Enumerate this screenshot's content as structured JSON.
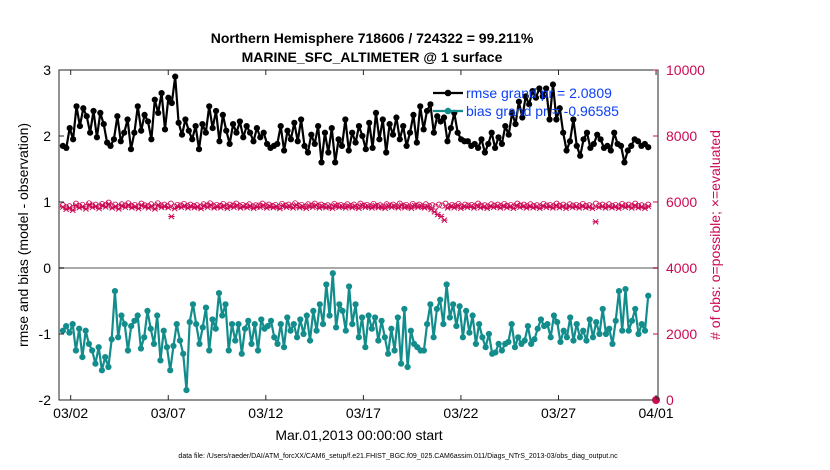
{
  "chart_data": {
    "type": "line",
    "title": "Northern Hemisphere 718606 / 724322 = 99.211%",
    "subtitle": "MARINE_SFC_ALTIMETER @ 1 surface",
    "xlabel": "Mar.01,2013 00:00:00 start",
    "ylabel_left": "rmse and bias (model - observation)",
    "ylabel_right": "# of obs: o=possible; ×=evaluated",
    "x_ticks": [
      "03/02",
      "03/07",
      "03/12",
      "03/17",
      "03/22",
      "03/27",
      "04/01"
    ],
    "x_tick_values": [
      1,
      6,
      11,
      16,
      21,
      26,
      31
    ],
    "xlim": [
      0.4,
      31.1
    ],
    "ylim_left": [
      -2,
      3
    ],
    "y_ticks_left": [
      "-2",
      "-1",
      "0",
      "1",
      "2",
      "3"
    ],
    "ylim_right": [
      0,
      10000
    ],
    "y_ticks_right": [
      "0",
      "2000",
      "4000",
      "6000",
      "8000",
      "10000"
    ],
    "footer": "data file: /Users/raeder/DAI/ATM_forcXX/CAM6_setup/f.e21.FHIST_BGC.f09_025.CAM6assim.011/Diags_NTrS_2013-03/obs_diag_output.nc",
    "series": [
      {
        "name": "rmse grand pr = 2.0809",
        "color": "#000000",
        "marker": "filled-circle",
        "axis": "left",
        "values": [
          1.85,
          1.82,
          2.12,
          1.95,
          2.45,
          2.15,
          2.42,
          2.3,
          2.05,
          2.38,
          1.98,
          2.35,
          2.18,
          1.9,
          1.85,
          1.95,
          2.3,
          1.92,
          2.05,
          2.25,
          1.8,
          2.05,
          2.45,
          2.08,
          2.32,
          2.22,
          1.95,
          2.55,
          2.35,
          2.65,
          2.1,
          2.58,
          2.5,
          2.9,
          2.2,
          2.02,
          2.25,
          2.08,
          1.95,
          2.15,
          1.8,
          2.18,
          2.05,
          2.45,
          2.12,
          2.38,
          1.92,
          2.32,
          2.08,
          1.88,
          2.18,
          2.05,
          2.22,
          1.98,
          2.15,
          2.05,
          1.92,
          2.12,
          1.98,
          2.05,
          1.88,
          1.82,
          1.85,
          1.88,
          2.15,
          1.78,
          2.08,
          1.95,
          2.2,
          1.92,
          2.25,
          1.85,
          1.75,
          2.02,
          1.88,
          2.15,
          1.6,
          2.05,
          1.75,
          2.12,
          1.6,
          1.95,
          1.85,
          2.25,
          1.78,
          2.05,
          1.9,
          2.15,
          2.0,
          1.8,
          2.2,
          1.82,
          2.35,
          1.95,
          2.25,
          1.75,
          2.18,
          2.02,
          2.28,
          1.95,
          2.15,
          1.85,
          2.05,
          2.32,
          1.9,
          2.45,
          2.1,
          2.38,
          2.48,
          2.05,
          2.3,
          2.22,
          2.28,
          1.92,
          2.12,
          2.35,
          2.05,
          1.95,
          1.92,
          1.92,
          1.85,
          1.88,
          1.82,
          1.95,
          1.75,
          1.88,
          2.05,
          1.82,
          1.98,
          1.88,
          2.15,
          2.02,
          2.35,
          2.18,
          2.52,
          2.28,
          2.6,
          2.48,
          2.68,
          2.58,
          2.72,
          2.6,
          2.72,
          2.25,
          2.78,
          2.25,
          2.42,
          2.05,
          1.78,
          1.92,
          2.25,
          1.85,
          1.7,
          1.95,
          2.05,
          1.82,
          1.88,
          2.02,
          1.95,
          1.82,
          1.85,
          1.78,
          2.05,
          1.88,
          1.85,
          1.6,
          1.78,
          1.85,
          1.95,
          1.92,
          1.85,
          1.88,
          1.83
        ]
      },
      {
        "name": "bias grand pr = -0.96585",
        "color": "#138c8c",
        "marker": "filled-circle",
        "axis": "left",
        "values": [
          -0.95,
          -0.88,
          -0.98,
          -0.85,
          -1.25,
          -0.92,
          -1.35,
          -0.95,
          -1.15,
          -1.25,
          -1.45,
          -1.2,
          -1.55,
          -1.35,
          -1.5,
          -1.08,
          -0.35,
          -1.05,
          -0.72,
          -0.85,
          -1.25,
          -0.88,
          -0.8,
          -0.72,
          -1.22,
          -1.05,
          -0.65,
          -0.92,
          -1.15,
          -0.72,
          -1.4,
          -0.95,
          -1.2,
          -1.55,
          -1.18,
          -0.85,
          -1.1,
          -1.3,
          -1.85,
          -0.82,
          -0.55,
          -0.85,
          -1.15,
          -0.9,
          -0.6,
          -1.25,
          -0.78,
          -0.92,
          -0.38,
          -0.72,
          -0.55,
          -1.25,
          -0.85,
          -1.1,
          -0.85,
          -1.3,
          -0.92,
          -0.8,
          -1.15,
          -0.85,
          -1.25,
          -0.78,
          -0.92,
          -0.88,
          -0.8,
          -1.05,
          -1.15,
          -0.85,
          -1.2,
          -0.75,
          -0.95,
          -0.85,
          -1.05,
          -0.78,
          -1.0,
          -0.72,
          -1.1,
          -0.65,
          -0.95,
          -0.55,
          -0.85,
          -0.25,
          -0.72,
          -0.08,
          -0.9,
          -0.55,
          -0.65,
          -0.95,
          -0.28,
          -0.85,
          -0.55,
          -1.05,
          -0.75,
          -1.2,
          -0.72,
          -0.92,
          -0.75,
          -1.1,
          -0.8,
          -1.05,
          -1.3,
          -0.92,
          -1.25,
          -0.75,
          -1.45,
          -0.62,
          -1.5,
          -0.95,
          -1.15,
          -1.2,
          -1.25,
          -1.25,
          -0.85,
          -0.55,
          -1.05,
          -0.62,
          -0.48,
          -0.85,
          -0.25,
          -0.75,
          -0.55,
          -0.88,
          -0.58,
          -1.05,
          -0.65,
          -0.98,
          -0.72,
          -1.15,
          -0.85,
          -1.05,
          -1.2,
          -1.0,
          -1.3,
          -1.28,
          -1.15,
          -1.25,
          -1.15,
          -1.12,
          -0.85,
          -1.2,
          -1.05,
          -1.15,
          -1.1,
          -0.88,
          -1.15,
          -1.08,
          -0.92,
          -0.78,
          -0.88,
          -0.85,
          -1.05,
          -0.72,
          -0.82,
          -1.12,
          -0.95,
          -1.05,
          -0.75,
          -1.1,
          -0.85,
          -1.05,
          -0.95,
          -1.1,
          -0.78,
          -1.05,
          -0.82,
          -1.0,
          -0.62,
          -1.0,
          -0.92,
          -1.15,
          -0.8,
          -0.35,
          -0.95,
          -0.32,
          -0.95,
          -0.8,
          -0.62,
          -1.0,
          -0.85,
          -0.95,
          -0.42
        ]
      },
      {
        "name": "possible",
        "color": "#cc0a55",
        "marker": "open-circle",
        "axis": "right",
        "values": [
          5900,
          5840,
          5870,
          5810,
          5950,
          5880,
          5910,
          5850,
          5960,
          5890,
          5920,
          5860,
          5940,
          5900,
          5980,
          5870,
          5920,
          5850,
          5930,
          5890,
          5960,
          5880,
          5910,
          5860,
          5950,
          5900,
          5870,
          5930,
          5840,
          5960,
          5890,
          5920,
          5880,
          5950,
          5860,
          5910,
          5890,
          5940,
          5870,
          5920,
          5880,
          5900,
          5850,
          5930,
          5890,
          5960,
          5870,
          5910,
          5880,
          5940,
          5860,
          5920,
          5890,
          5950,
          5870,
          5910,
          5880,
          5930,
          5860,
          5900,
          5890,
          5950,
          5870,
          5920,
          5880,
          5910,
          5850,
          5940,
          5890,
          5920,
          5870,
          5960,
          5880,
          5910,
          5860,
          5930,
          5890,
          5950,
          5870,
          5920,
          5880,
          5900,
          5860,
          5940,
          5890,
          5910,
          5870,
          5930,
          5880,
          5920,
          5860,
          5950,
          5890,
          5910,
          5870,
          5940,
          5880,
          5900,
          5860,
          5930,
          5890,
          5920,
          5870,
          5950,
          5880,
          5910,
          5860,
          5940,
          5890,
          5920,
          5870,
          5930,
          5880,
          5900,
          5860,
          5920,
          5890,
          5950,
          5870,
          5910,
          5880,
          5940,
          5860,
          5920,
          5890,
          5910,
          5870,
          5950,
          5880,
          5900,
          5860,
          5930,
          5890,
          5920,
          5870,
          5940,
          5880,
          5910,
          5860,
          5950,
          5890,
          5920,
          5870,
          5930,
          5880,
          5900,
          5860,
          5940,
          5890,
          5910,
          5870,
          5950,
          5880,
          5920,
          5860,
          5930,
          5890,
          5910,
          5870,
          5940,
          5880,
          5900,
          5860,
          5950,
          5890,
          5920,
          5870,
          5930,
          5880,
          5910,
          5860,
          5940,
          5890,
          5920,
          5870,
          5950,
          5880,
          5900,
          5860,
          5920
        ]
      },
      {
        "name": "evaluated",
        "color": "#cc0a55",
        "marker": "x",
        "axis": "right",
        "values": [
          5850,
          5780,
          5820,
          5750,
          5900,
          5830,
          5860,
          5790,
          5920,
          5840,
          5870,
          5800,
          5900,
          5850,
          5940,
          5820,
          5870,
          5790,
          5890,
          5840,
          5910,
          5830,
          5860,
          5800,
          5900,
          5850,
          5820,
          5880,
          5790,
          5910,
          5840,
          5860,
          5830,
          5560,
          5800,
          5860,
          5840,
          5890,
          5820,
          5870,
          5830,
          5850,
          5800,
          5880,
          5840,
          5910,
          5820,
          5860,
          5830,
          5890,
          5810,
          5870,
          5840,
          5900,
          5820,
          5860,
          5830,
          5880,
          5810,
          5850,
          5840,
          5900,
          5820,
          5870,
          5830,
          5860,
          5800,
          5890,
          5840,
          5870,
          5820,
          5910,
          5830,
          5860,
          5810,
          5880,
          5840,
          5900,
          5820,
          5870,
          5830,
          5850,
          5810,
          5890,
          5840,
          5860,
          5820,
          5880,
          5830,
          5870,
          5810,
          5900,
          5840,
          5860,
          5820,
          5890,
          5830,
          5850,
          5810,
          5880,
          5840,
          5870,
          5820,
          5900,
          5830,
          5860,
          5810,
          5890,
          5840,
          5870,
          5820,
          5860,
          5780,
          5700,
          5620,
          5560,
          5450,
          5820,
          5870,
          5830,
          5890,
          5810,
          5870,
          5840,
          5860,
          5820,
          5900,
          5830,
          5850,
          5810,
          5880,
          5840,
          5870,
          5820,
          5890,
          5830,
          5860,
          5810,
          5900,
          5840,
          5870,
          5820,
          5880,
          5830,
          5850,
          5810,
          5890,
          5840,
          5860,
          5820,
          5900,
          5830,
          5870,
          5810,
          5880,
          5840,
          5860,
          5820,
          5890,
          5830,
          5850,
          5810,
          5400,
          5840,
          5870,
          5820,
          5880,
          5830,
          5860,
          5810,
          5890,
          5840,
          5870,
          5820,
          5900,
          5830,
          5850,
          5810,
          5870
        ]
      }
    ],
    "isolated_points": [
      {
        "series": "possible",
        "x": 31.0,
        "y": 0
      }
    ]
  }
}
